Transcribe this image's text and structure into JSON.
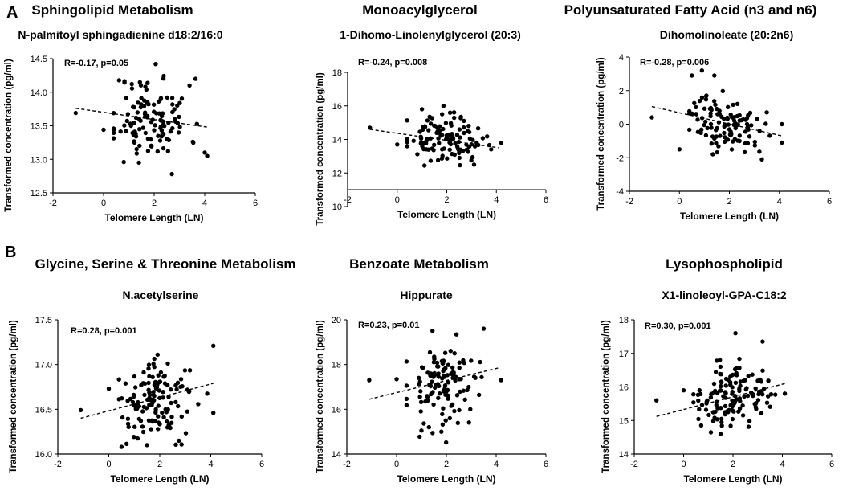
{
  "panel_labels": [
    "A",
    "B"
  ],
  "chart_data": [
    {
      "type": "scatter",
      "section_title": "Sphingolipid Metabolism",
      "title": "N-palmitoyl sphingadienine d18:2/16:0",
      "annotation": "R=-0.17, p=0.05",
      "xlabel": "Telomere Length (LN)",
      "ylabel": "Transformed concentration (pg/ml)",
      "xlim": [
        -2,
        6
      ],
      "ylim": [
        12.5,
        14.5
      ],
      "xticks": [
        -2,
        0,
        2,
        4,
        6
      ],
      "yticks": [
        12.5,
        13.0,
        13.5,
        14.0,
        14.5
      ],
      "ytick_labels": [
        "12.5",
        "13.0",
        "13.5",
        "14.0",
        "14.5"
      ],
      "trend": {
        "x": [
          -1.1,
          4.1
        ],
        "y": [
          13.76,
          13.48
        ]
      },
      "scatter": {
        "center_x": 1.9,
        "sd_x": 0.75,
        "center_y": 13.62,
        "sd_y": 0.32,
        "n": 120,
        "seed": 11,
        "outliers": [
          [
            -1.1,
            13.69
          ],
          [
            0.0,
            13.44
          ],
          [
            4.1,
            13.05
          ],
          [
            4.0,
            13.1
          ],
          [
            3.4,
            14.1
          ],
          [
            0.8,
            12.96
          ],
          [
            1.4,
            12.95
          ],
          [
            2.7,
            12.78
          ]
        ]
      }
    },
    {
      "type": "scatter",
      "section_title": "Monoacylglycerol",
      "title": "1-Dihomo-Linolenylglycerol (20:3)",
      "annotation": "R=-0.24, p=0.008",
      "xlabel": "Telomere Length (LN)",
      "ylabel": "Transformed concentration (pg/ml)",
      "xlim": [
        -2,
        6
      ],
      "ylim": [
        10,
        18
      ],
      "xticks": [
        -2,
        0,
        2,
        4,
        6
      ],
      "yticks": [
        10,
        12,
        14,
        16,
        18
      ],
      "ytick_labels": [
        "10",
        "12",
        "14",
        "16",
        "18"
      ],
      "axis_cross_y": 11,
      "trend": {
        "x": [
          -1.1,
          4.1
        ],
        "y": [
          14.6,
          13.5
        ]
      },
      "scatter": {
        "center_x": 1.9,
        "sd_x": 0.75,
        "center_y": 14.0,
        "sd_y": 0.65,
        "n": 120,
        "seed": 23,
        "outliers": [
          [
            -1.1,
            14.7
          ],
          [
            0.0,
            13.7
          ],
          [
            4.2,
            13.8
          ],
          [
            3.1,
            12.5
          ],
          [
            1.0,
            15.8
          ]
        ]
      }
    },
    {
      "type": "scatter",
      "section_title": "Polyunsaturated Fatty Acid (n3 and n6)",
      "title": "Dihomolinoleate (20:2n6)",
      "annotation": "R=-0.28, p=0.006",
      "xlabel": "Telomere Length (LN)",
      "ylabel": "Transformed concentration (pg/ml)",
      "xlim": [
        -2,
        6
      ],
      "ylim": [
        -4,
        4
      ],
      "xticks": [
        -2,
        0,
        2,
        4,
        6
      ],
      "yticks": [
        -4,
        -2,
        0,
        2,
        4
      ],
      "ytick_labels": [
        "-4",
        "-2",
        "0",
        "2",
        "4"
      ],
      "trend": {
        "x": [
          -1.1,
          4.1
        ],
        "y": [
          1.05,
          -0.7
        ]
      },
      "scatter": {
        "center_x": 1.9,
        "sd_x": 0.75,
        "center_y": 0.0,
        "sd_y": 0.8,
        "n": 110,
        "seed": 37,
        "outliers": [
          [
            -1.1,
            0.4
          ],
          [
            0.0,
            -1.5
          ],
          [
            0.5,
            2.9
          ],
          [
            0.9,
            3.2
          ],
          [
            1.4,
            2.9
          ],
          [
            4.1,
            -1.1
          ],
          [
            3.3,
            -2.1
          ],
          [
            4.1,
            0.0
          ]
        ]
      }
    },
    {
      "type": "scatter",
      "section_title": "Glycine, Serine & Threonine Metabolism",
      "title": "N.acetylserine",
      "annotation": "R=0.28, p=0.001",
      "xlabel": "Telomere Length (LN)",
      "ylabel": "Transformed concentration (pg/ml)",
      "xlim": [
        -2,
        6
      ],
      "ylim": [
        16.0,
        17.5
      ],
      "xticks": [
        -2,
        0,
        2,
        4,
        6
      ],
      "yticks": [
        16.0,
        16.5,
        17.0,
        17.5
      ],
      "ytick_labels": [
        "16.0",
        "16.5",
        "17.0",
        "17.5"
      ],
      "trend": {
        "x": [
          -1.1,
          4.1
        ],
        "y": [
          16.4,
          16.79
        ]
      },
      "scatter": {
        "center_x": 1.9,
        "sd_x": 0.75,
        "center_y": 16.6,
        "sd_y": 0.21,
        "n": 130,
        "seed": 41,
        "outliers": [
          [
            -1.1,
            16.49
          ],
          [
            0.0,
            16.73
          ],
          [
            4.1,
            17.21
          ],
          [
            4.1,
            16.46
          ],
          [
            0.5,
            16.08
          ],
          [
            1.5,
            16.1
          ]
        ]
      }
    },
    {
      "type": "scatter",
      "section_title": "Benzoate Metabolism",
      "title": "Hippurate",
      "annotation": "R=0.23, p=0.01",
      "xlabel": "Telomere Length (LN)",
      "ylabel": "Transformed concentration (pg/ml)",
      "xlim": [
        -2,
        6
      ],
      "ylim": [
        14,
        20
      ],
      "xticks": [
        -2,
        0,
        2,
        4,
        6
      ],
      "yticks": [
        14,
        16,
        18,
        20
      ],
      "ytick_labels": [
        "14",
        "16",
        "18",
        "20"
      ],
      "trend": {
        "x": [
          -1.1,
          4.1
        ],
        "y": [
          16.45,
          17.85
        ]
      },
      "scatter": {
        "center_x": 1.9,
        "sd_x": 0.75,
        "center_y": 17.2,
        "sd_y": 0.95,
        "n": 120,
        "seed": 53,
        "outliers": [
          [
            -1.1,
            17.3
          ],
          [
            0.0,
            17.35
          ],
          [
            3.5,
            19.6
          ],
          [
            4.2,
            17.3
          ],
          [
            1.8,
            15.0
          ],
          [
            1.3,
            15.2
          ]
        ]
      }
    },
    {
      "type": "scatter",
      "section_title": "Lysophospholipid",
      "title": "X1-linoleoyl-GPA-C18:2",
      "annotation": "R=0.30, p=0.001",
      "xlabel": "Telomere Length (LN)",
      "ylabel": "Transformed concentration (pg/ml)",
      "xlim": [
        -2,
        6
      ],
      "ylim": [
        14,
        18
      ],
      "xticks": [
        -2,
        0,
        2,
        4,
        6
      ],
      "yticks": [
        14,
        15,
        16,
        17,
        18
      ],
      "ytick_labels": [
        "14",
        "15",
        "16",
        "17",
        "18"
      ],
      "trend": {
        "x": [
          -1.1,
          4.1
        ],
        "y": [
          15.12,
          16.1
        ]
      },
      "scatter": {
        "center_x": 1.9,
        "sd_x": 0.75,
        "center_y": 15.65,
        "sd_y": 0.45,
        "n": 130,
        "seed": 67,
        "outliers": [
          [
            -1.1,
            15.6
          ],
          [
            0.0,
            15.9
          ],
          [
            2.1,
            17.6
          ],
          [
            3.2,
            17.35
          ],
          [
            1.5,
            14.6
          ],
          [
            4.1,
            15.8
          ]
        ]
      }
    }
  ]
}
